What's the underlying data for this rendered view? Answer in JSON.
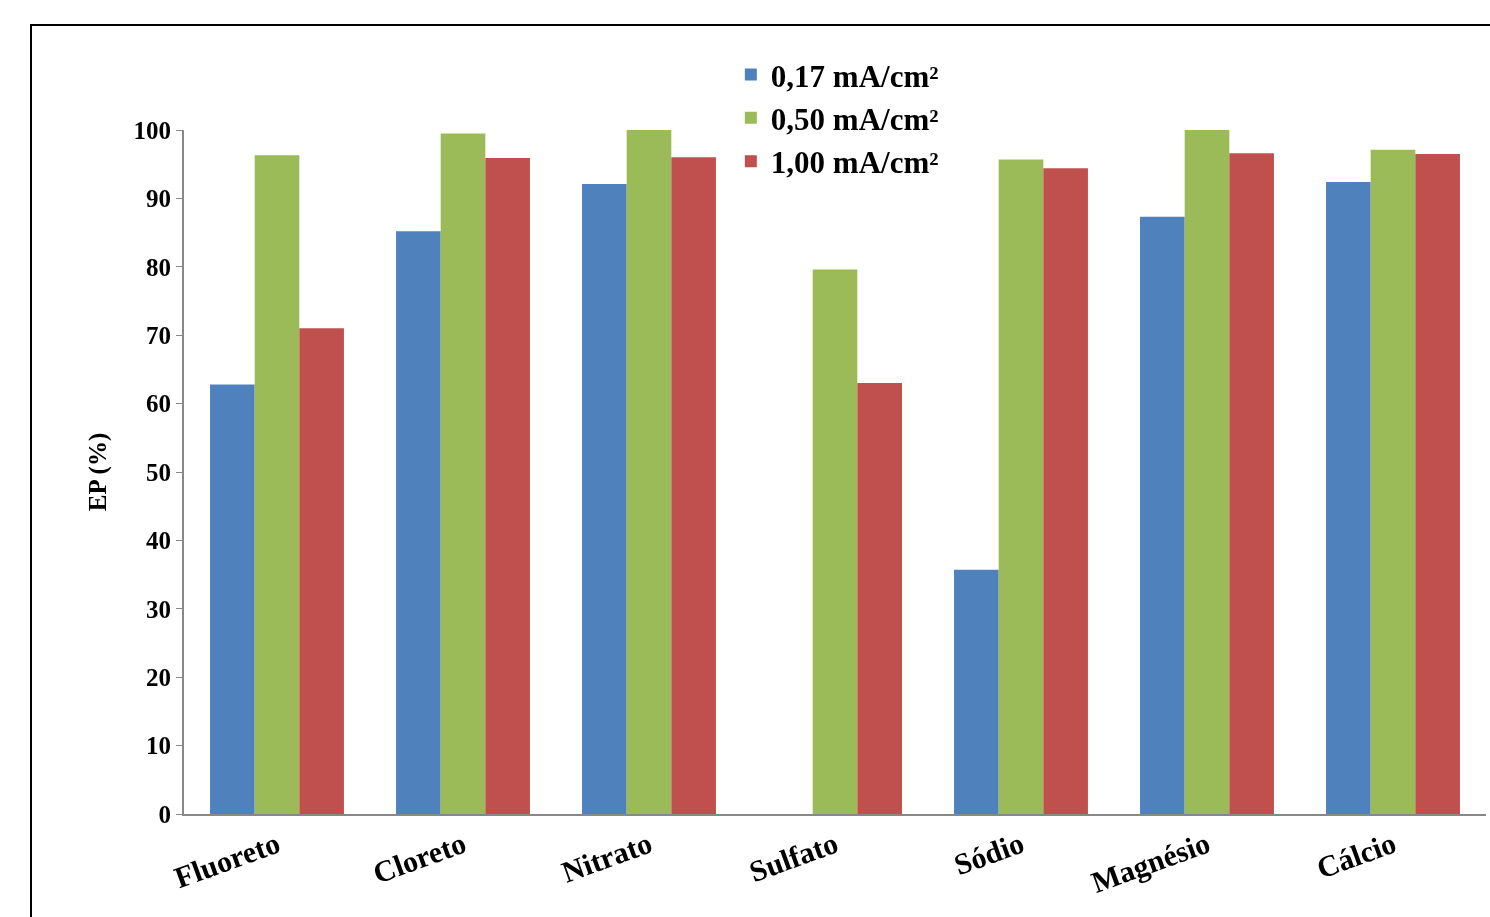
{
  "chart_data": {
    "type": "bar",
    "ylabel": "EP (%)",
    "categories": [
      "Fluoreto",
      "Cloreto",
      "Nitrato",
      "Sulfato",
      "Sódio",
      "Magnésio",
      "Cálcio"
    ],
    "series": [
      {
        "name": "0,17 mA/cm²",
        "color": "#4f81bd",
        "values": [
          62.8,
          85.2,
          92.1,
          0,
          35.7,
          87.3,
          92.4
        ]
      },
      {
        "name": "0,50 mA/cm²",
        "color": "#9bbb59",
        "values": [
          96.3,
          99.5,
          100,
          79.6,
          95.7,
          100,
          97.1
        ]
      },
      {
        "name": "1,00 mA/cm²",
        "color": "#c0504d",
        "values": [
          71.0,
          95.9,
          96.0,
          63.0,
          94.4,
          96.6,
          96.5
        ]
      }
    ],
    "ylim": [
      0,
      100
    ],
    "yticks": [
      0,
      10,
      20,
      30,
      40,
      50,
      60,
      70,
      80,
      90,
      100
    ],
    "grid": false,
    "legend": "top"
  }
}
